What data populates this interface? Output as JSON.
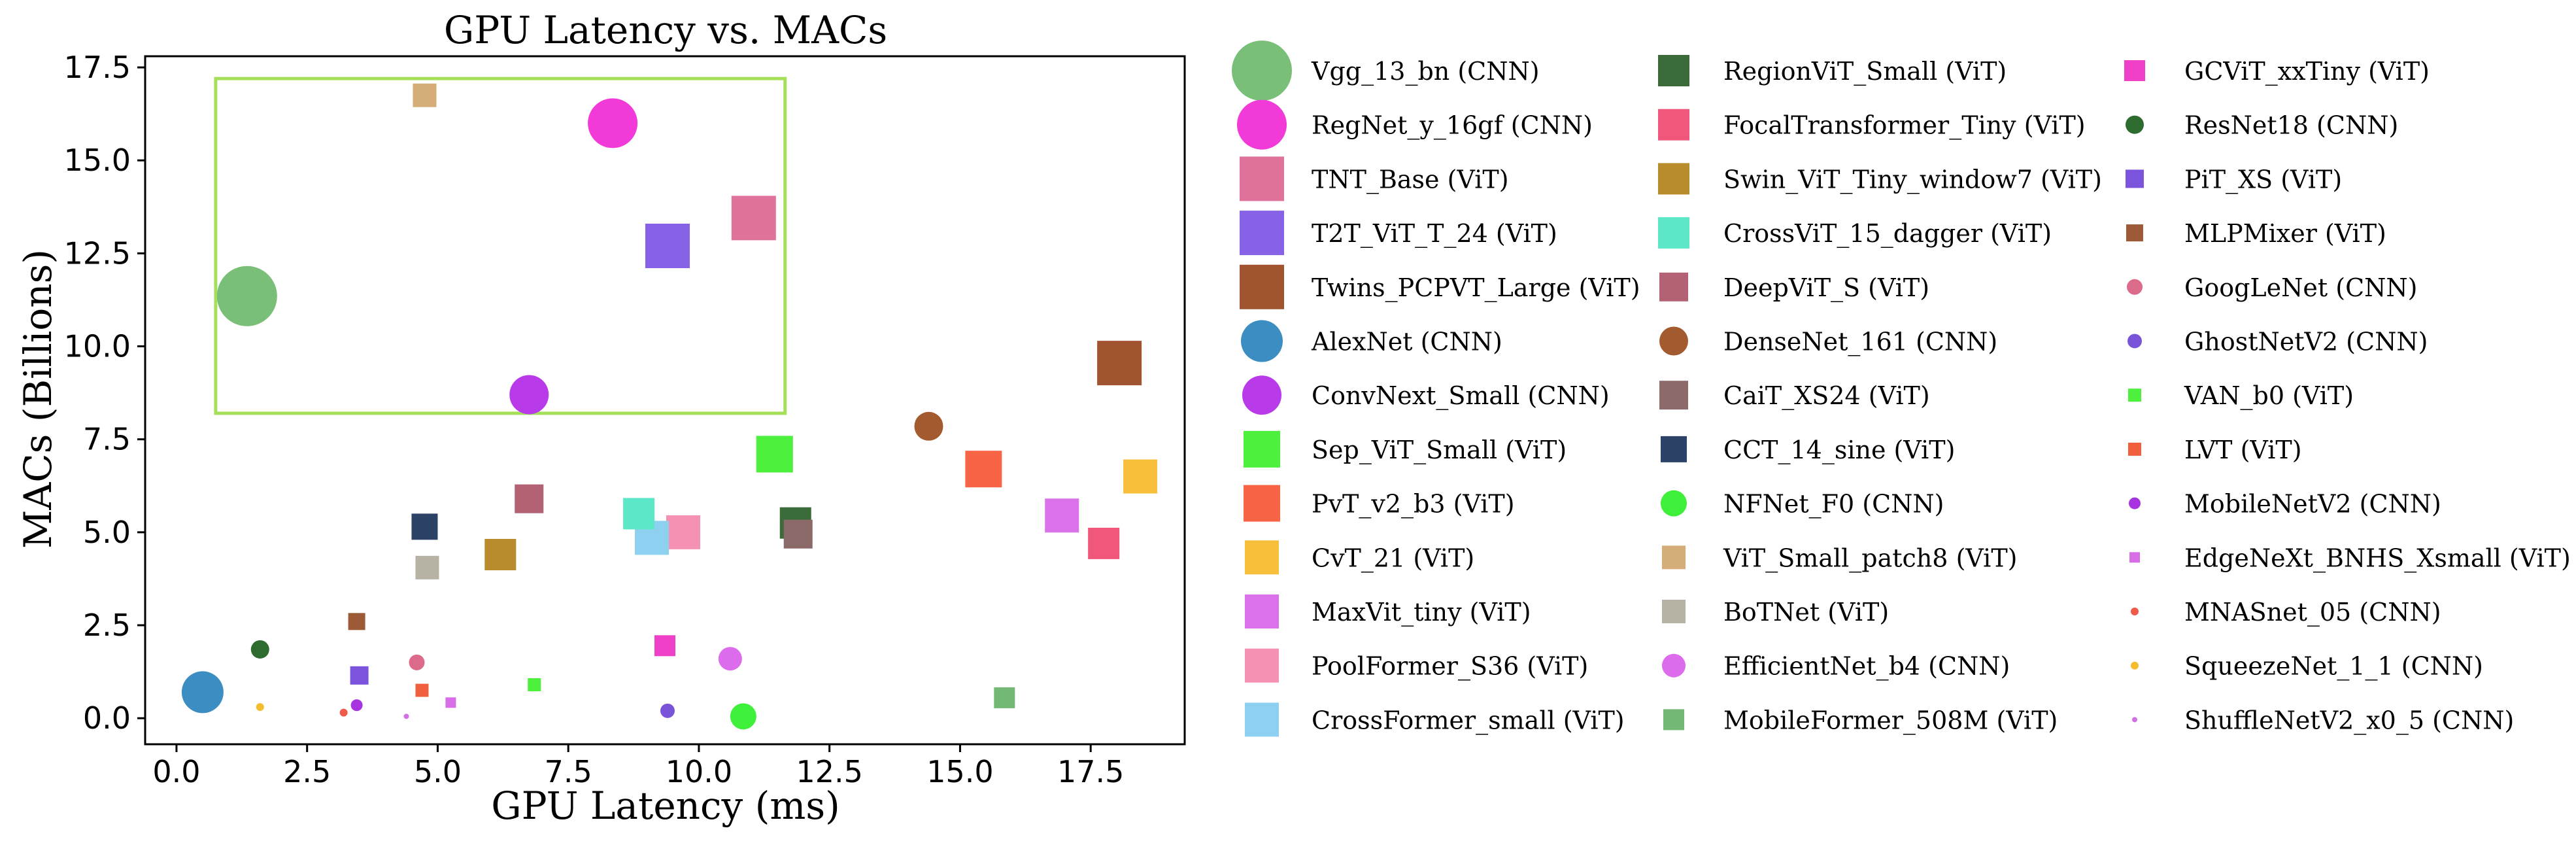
{
  "chart_data": {
    "type": "scatter",
    "title": "GPU Latency vs. MACs",
    "xlabel": "GPU Latency (ms)",
    "ylabel": "MACs (Billions)",
    "xlim": [
      -0.6,
      19.3
    ],
    "ylim": [
      -0.7,
      17.8
    ],
    "xticks": [
      0.0,
      2.5,
      5.0,
      7.5,
      10.0,
      12.5,
      15.0,
      17.5
    ],
    "xtick_labels": [
      "0.0",
      "2.5",
      "5.0",
      "7.5",
      "10.0",
      "12.5",
      "15.0",
      "17.5"
    ],
    "yticks": [
      0.0,
      2.5,
      5.0,
      7.5,
      10.0,
      12.5,
      15.0,
      17.5
    ],
    "ytick_labels": [
      "0.0",
      "2.5",
      "5.0",
      "7.5",
      "10.0",
      "12.5",
      "15.0",
      "17.5"
    ],
    "highlight_box": {
      "x": [
        0.75,
        11.65
      ],
      "y": [
        8.2,
        17.2
      ],
      "color": "#a6e05a"
    },
    "legend_placement": "right",
    "points": [
      {
        "name": "Vgg_13_bn (CNN)",
        "x": 1.35,
        "y": 11.35,
        "shape": "circle",
        "color": "#79bf78",
        "size": 46
      },
      {
        "name": "RegNet_y_16gf (CNN)",
        "x": 8.35,
        "y": 16.0,
        "shape": "circle",
        "color": "#f23ad8",
        "size": 38
      },
      {
        "name": "TNT_Base (ViT)",
        "x": 11.05,
        "y": 13.45,
        "shape": "square",
        "color": "#e0739b",
        "size": 34
      },
      {
        "name": "T2T_ViT_T_24 (ViT)",
        "x": 9.4,
        "y": 12.7,
        "shape": "square",
        "color": "#8761e6",
        "size": 34
      },
      {
        "name": "Twins_PCPVT_Large (ViT)",
        "x": 18.05,
        "y": 9.55,
        "shape": "square",
        "color": "#a05530",
        "size": 34
      },
      {
        "name": "AlexNet (CNN)",
        "x": 0.5,
        "y": 0.7,
        "shape": "circle",
        "color": "#3b8dc2",
        "size": 32
      },
      {
        "name": "ConvNext_Small (CNN)",
        "x": 6.75,
        "y": 8.7,
        "shape": "circle",
        "color": "#b93ae8",
        "size": 30
      },
      {
        "name": "Sep_ViT_Small (ViT)",
        "x": 11.45,
        "y": 7.1,
        "shape": "square",
        "color": "#4cf03d",
        "size": 28
      },
      {
        "name": "PvT_v2_b3 (ViT)",
        "x": 15.45,
        "y": 6.7,
        "shape": "square",
        "color": "#f86446",
        "size": 28
      },
      {
        "name": "CvT_21 (ViT)",
        "x": 18.45,
        "y": 6.5,
        "shape": "square",
        "color": "#f8bf3c",
        "size": 26
      },
      {
        "name": "MaxVit_tiny (ViT)",
        "x": 16.95,
        "y": 5.45,
        "shape": "square",
        "color": "#da73ea",
        "size": 26
      },
      {
        "name": "PoolFormer_S36 (ViT)",
        "x": 9.7,
        "y": 5.0,
        "shape": "square",
        "color": "#f592b4",
        "size": 26
      },
      {
        "name": "CrossFormer_small (ViT)",
        "x": 9.1,
        "y": 4.85,
        "shape": "square",
        "color": "#8ed0f0",
        "size": 26
      },
      {
        "name": "RegionViT_Small (ViT)",
        "x": 11.85,
        "y": 5.25,
        "shape": "square",
        "color": "#3a6b38",
        "size": 24
      },
      {
        "name": "FocalTransformer_Tiny (ViT)",
        "x": 17.75,
        "y": 4.7,
        "shape": "square",
        "color": "#f0577a",
        "size": 24
      },
      {
        "name": "Swin_ViT_Tiny_window7 (ViT)",
        "x": 6.2,
        "y": 4.4,
        "shape": "square",
        "color": "#b88c2c",
        "size": 24
      },
      {
        "name": "CrossViT_15_dagger (ViT)",
        "x": 8.85,
        "y": 5.5,
        "shape": "square",
        "color": "#5ce8c8",
        "size": 24
      },
      {
        "name": "DeepViT_S (ViT)",
        "x": 6.75,
        "y": 5.9,
        "shape": "square",
        "color": "#b26272",
        "size": 22
      },
      {
        "name": "DenseNet_161 (CNN)",
        "x": 14.4,
        "y": 7.85,
        "shape": "circle",
        "color": "#a25a2e",
        "size": 22
      },
      {
        "name": "CaiT_XS24 (ViT)",
        "x": 11.9,
        "y": 4.95,
        "shape": "square",
        "color": "#8c6a6a",
        "size": 22
      },
      {
        "name": "CCT_14_sine (ViT)",
        "x": 4.75,
        "y": 5.15,
        "shape": "square",
        "color": "#2c4266",
        "size": 20
      },
      {
        "name": "NFNet_F0 (CNN)",
        "x": 10.85,
        "y": 0.05,
        "shape": "circle",
        "color": "#3ff03a",
        "size": 20
      },
      {
        "name": "ViT_Small_patch8 (ViT)",
        "x": 4.75,
        "y": 16.75,
        "shape": "square",
        "color": "#d4ad79",
        "size": 18
      },
      {
        "name": "BoTNet (ViT)",
        "x": 4.8,
        "y": 4.05,
        "shape": "square",
        "color": "#b7b3a4",
        "size": 18
      },
      {
        "name": "EfficientNet_b4 (CNN)",
        "x": 10.6,
        "y": 1.6,
        "shape": "circle",
        "color": "#dc6cec",
        "size": 18
      },
      {
        "name": "MobileFormer_508M (ViT)",
        "x": 15.85,
        "y": 0.55,
        "shape": "square",
        "color": "#73b874",
        "size": 16
      },
      {
        "name": "GCViT_xxTiny (ViT)",
        "x": 9.35,
        "y": 1.95,
        "shape": "square",
        "color": "#f040c8",
        "size": 16
      },
      {
        "name": "ResNet18 (CNN)",
        "x": 1.6,
        "y": 1.85,
        "shape": "circle",
        "color": "#2d6b2e",
        "size": 14
      },
      {
        "name": "PiT_XS (ViT)",
        "x": 3.5,
        "y": 1.15,
        "shape": "square",
        "color": "#7c53dc",
        "size": 14
      },
      {
        "name": "MLPMixer (ViT)",
        "x": 3.45,
        "y": 2.6,
        "shape": "square",
        "color": "#9c5a36",
        "size": 13
      },
      {
        "name": "GoogLeNet (CNN)",
        "x": 4.6,
        "y": 1.5,
        "shape": "circle",
        "color": "#dc6a8a",
        "size": 12
      },
      {
        "name": "GhostNetV2 (CNN)",
        "x": 9.4,
        "y": 0.2,
        "shape": "circle",
        "color": "#7a54d8",
        "size": 11
      },
      {
        "name": "VAN_b0 (ViT)",
        "x": 6.85,
        "y": 0.9,
        "shape": "square",
        "color": "#4cf03d",
        "size": 10
      },
      {
        "name": "LVT (ViT)",
        "x": 4.7,
        "y": 0.75,
        "shape": "square",
        "color": "#f0603c",
        "size": 10
      },
      {
        "name": "MobileNetV2 (CNN)",
        "x": 3.45,
        "y": 0.35,
        "shape": "circle",
        "color": "#a833e0",
        "size": 9
      },
      {
        "name": "EdgeNeXt_BNHS_Xsmall (ViT)",
        "x": 5.25,
        "y": 0.42,
        "shape": "square",
        "color": "#d86ee6",
        "size": 8
      },
      {
        "name": "MNASnet_05 (CNN)",
        "x": 3.2,
        "y": 0.15,
        "shape": "circle",
        "color": "#f05a4a",
        "size": 6
      },
      {
        "name": "SqueezeNet_1_1 (CNN)",
        "x": 1.6,
        "y": 0.3,
        "shape": "circle",
        "color": "#f5bc2e",
        "size": 6
      },
      {
        "name": "ShuffleNetV2_x0_5 (CNN)",
        "x": 4.4,
        "y": 0.05,
        "shape": "circle",
        "color": "#d46ee6",
        "size": 4
      }
    ]
  }
}
